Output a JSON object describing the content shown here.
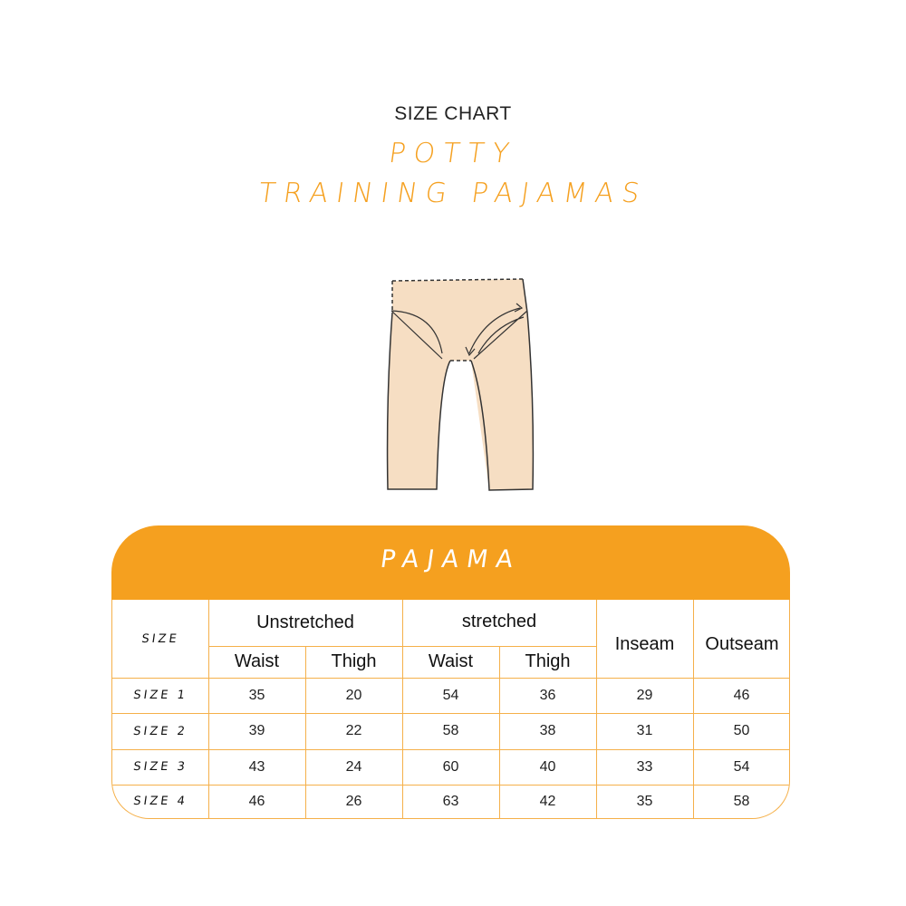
{
  "header": {
    "supertitle": "SIZE CHART",
    "title_line1": "POTTY",
    "title_line2": "TRAINING PAJAMAS"
  },
  "illustration": {
    "name": "pajama-pants",
    "fill": "#F6DEC3"
  },
  "table": {
    "title": "PAJAMA",
    "accent_color": "#F5A01F",
    "size_header": "SIZE",
    "groups": [
      "Unstretched",
      "stretched"
    ],
    "sub_headers": [
      "Waist",
      "Thigh",
      "Waist",
      "Thigh"
    ],
    "single_headers": [
      "Inseam",
      "Outseam"
    ],
    "rows": [
      {
        "size": "SIZE 1",
        "values": [
          "35",
          "20",
          "54",
          "36",
          "29",
          "46"
        ]
      },
      {
        "size": "SIZE 2",
        "values": [
          "39",
          "22",
          "58",
          "38",
          "31",
          "50"
        ]
      },
      {
        "size": "SIZE 3",
        "values": [
          "43",
          "24",
          "60",
          "40",
          "33",
          "54"
        ]
      },
      {
        "size": "SIZE 4",
        "values": [
          "46",
          "26",
          "63",
          "42",
          "35",
          "58"
        ]
      }
    ]
  }
}
